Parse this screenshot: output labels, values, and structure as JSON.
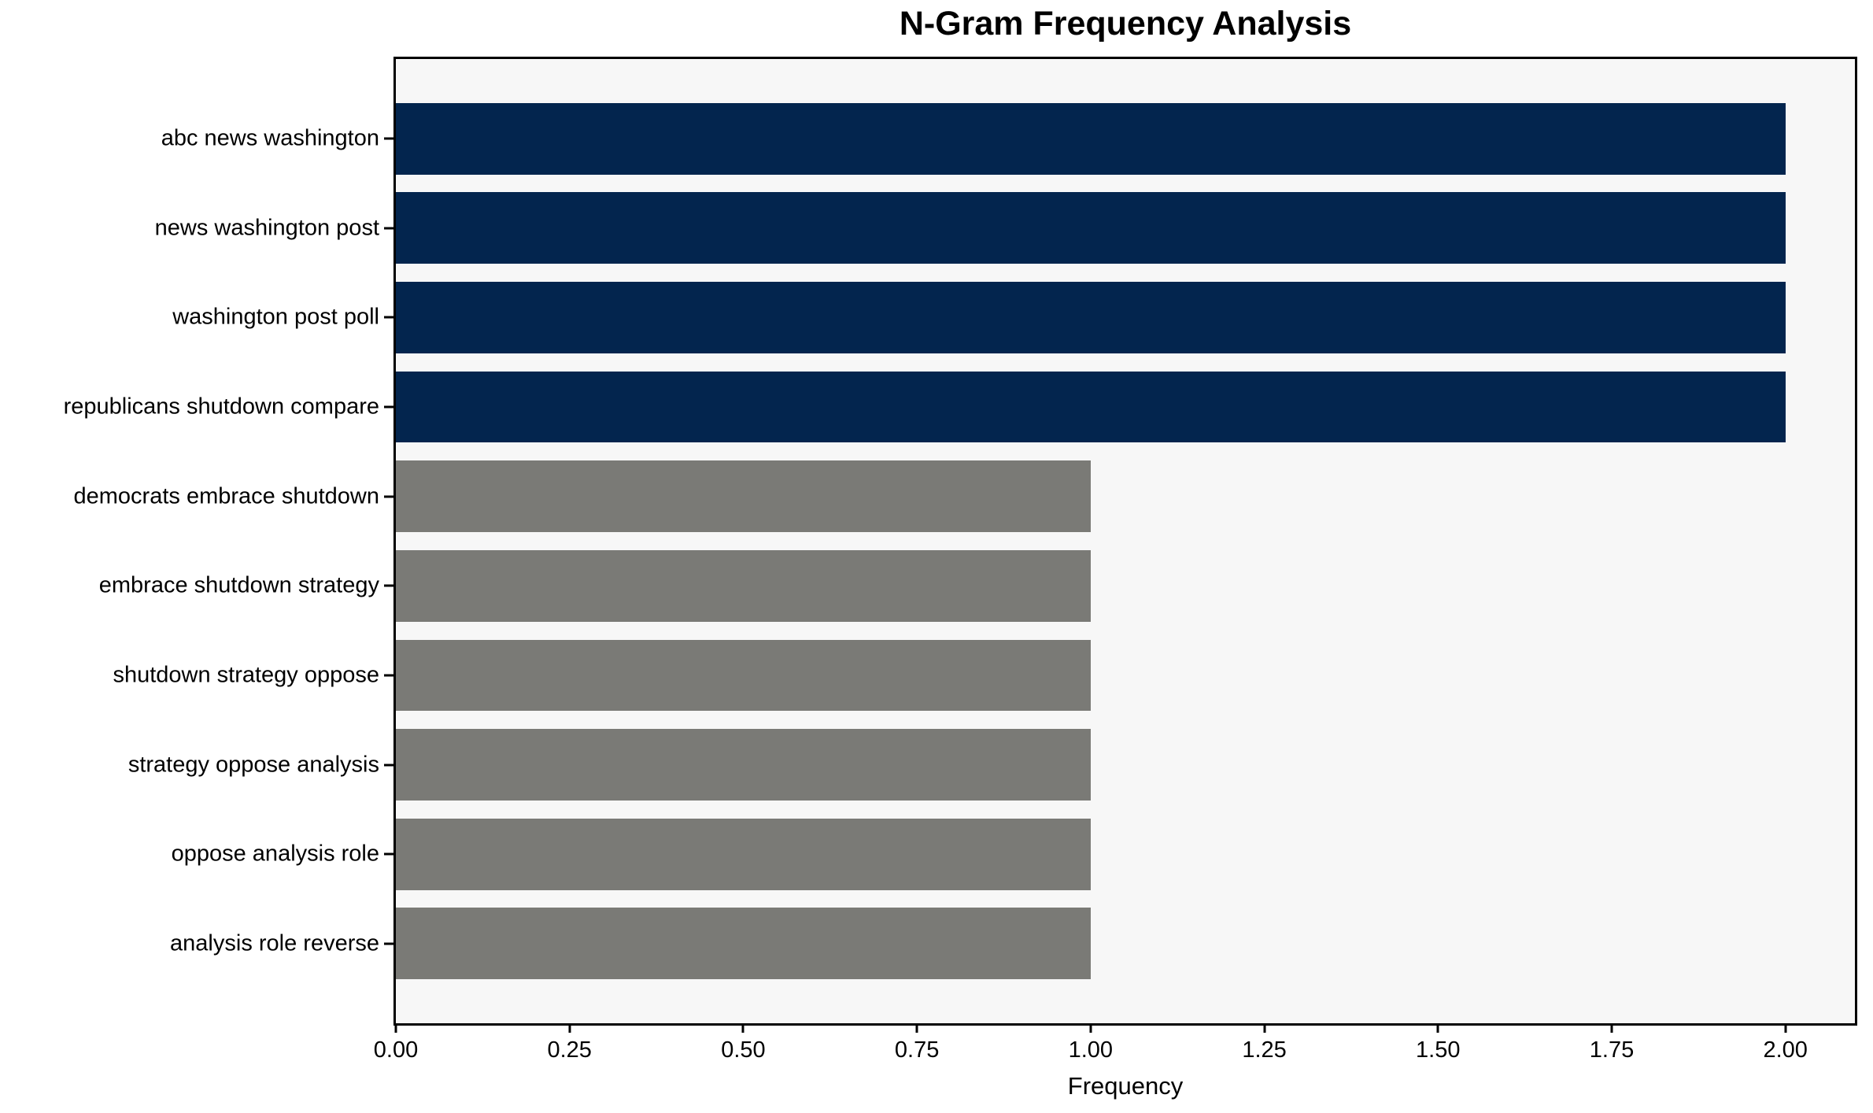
{
  "chart_data": {
    "type": "bar",
    "orientation": "horizontal",
    "title": "N-Gram Frequency Analysis",
    "xlabel": "Frequency",
    "ylabel": "",
    "categories": [
      "abc news washington",
      "news washington post",
      "washington post poll",
      "republicans shutdown compare",
      "democrats embrace shutdown",
      "embrace shutdown strategy",
      "shutdown strategy oppose",
      "strategy oppose analysis",
      "oppose analysis role",
      "analysis role reverse"
    ],
    "values": [
      2,
      2,
      2,
      2,
      1,
      1,
      1,
      1,
      1,
      1
    ],
    "bar_colors": [
      "#03254e",
      "#03254e",
      "#03254e",
      "#03254e",
      "#7a7a76",
      "#7a7a76",
      "#7a7a76",
      "#7a7a76",
      "#7a7a76",
      "#7a7a76"
    ],
    "xlim": [
      0,
      2.1
    ],
    "x_ticks": [
      0,
      0.25,
      0.5,
      0.75,
      1.0,
      1.25,
      1.5,
      1.75,
      2.0
    ],
    "x_tick_labels": [
      "0.00",
      "0.25",
      "0.50",
      "0.75",
      "1.00",
      "1.25",
      "1.50",
      "1.75",
      "2.00"
    ],
    "legend": null,
    "grid": false,
    "colors": {
      "plot_background": "#f7f7f7",
      "page_background": "#ffffff",
      "spine": "#000000",
      "text": "#000000",
      "bar_high": "#03254e",
      "bar_low": "#7a7a76"
    }
  }
}
